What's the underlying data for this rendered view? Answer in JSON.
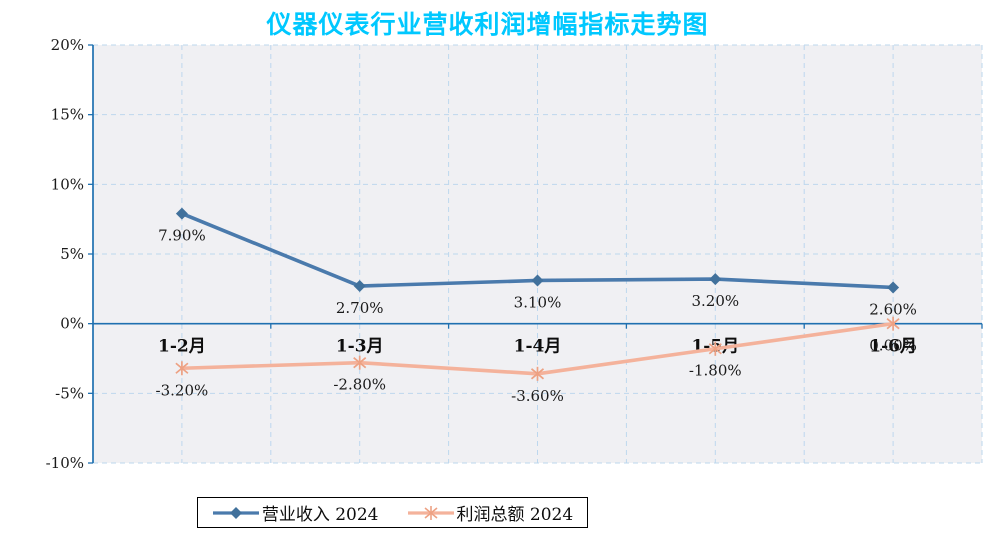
{
  "chart_data": {
    "type": "line",
    "title": "仪器仪表行业营收利润增幅指标走势图",
    "categories": [
      "1-2月",
      "1-3月",
      "1-4月",
      "1-5月",
      "1-6月"
    ],
    "series": [
      {
        "name": "营业收入 2024",
        "marker": "diamond",
        "color": "#4a7aac",
        "marker_color": "#41719c",
        "values": [
          7.9,
          2.7,
          3.1,
          3.2,
          2.6
        ],
        "labels": [
          "7.90%",
          "2.70%",
          "3.10%",
          "3.20%",
          "2.60%"
        ]
      },
      {
        "name": "利润总额 2024",
        "marker": "asterisk",
        "color": "#f4b29b",
        "marker_color": "#eda183",
        "values": [
          -3.2,
          -2.8,
          -3.6,
          -1.8,
          0.0
        ],
        "labels": [
          "-3.20%",
          "-2.80%",
          "-3.60%",
          "-1.80%",
          "0.00%"
        ]
      }
    ],
    "ylim": [
      -10,
      20
    ],
    "ytick_step": 5,
    "ytick_labels": [
      "20%",
      "15%",
      "10%",
      "5%",
      "0%",
      "-5%",
      "-10%"
    ],
    "grid": true,
    "legend_position": "bottom",
    "colors": {
      "title": "#00c8ff",
      "axis": "#1f70b0",
      "grid": "#bdd7ee",
      "plot_bg": "#f0f0f3",
      "label": "#1a1a1a"
    }
  }
}
